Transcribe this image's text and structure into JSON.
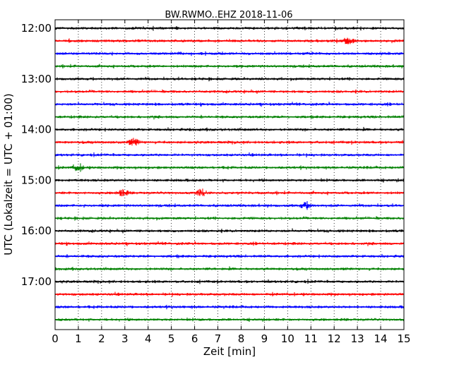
{
  "chart_data": {
    "type": "line",
    "title": "BW.RWMO..EHZ 2018-11-06",
    "xlabel": "Zeit  [min]",
    "ylabel": "UTC (Lokalzeit = UTC + 01:00)",
    "xlim": [
      0,
      15
    ],
    "x_ticks": [
      "0",
      "1",
      "2",
      "3",
      "4",
      "5",
      "6",
      "7",
      "8",
      "9",
      "10",
      "11",
      "12",
      "13",
      "14",
      "15"
    ],
    "y_ticks": [
      "12:00",
      "13:00",
      "14:00",
      "15:00",
      "16:00",
      "17:00"
    ],
    "grid": "vertical dotted at each minute",
    "trace_colors": [
      "#000000",
      "#ff0000",
      "#0000ff",
      "#008000"
    ],
    "traces": [
      {
        "start": "12:00"
      },
      {
        "start": "12:15"
      },
      {
        "start": "12:30"
      },
      {
        "start": "12:45"
      },
      {
        "start": "13:00"
      },
      {
        "start": "13:15"
      },
      {
        "start": "13:30"
      },
      {
        "start": "13:45"
      },
      {
        "start": "14:00"
      },
      {
        "start": "14:15"
      },
      {
        "start": "14:30"
      },
      {
        "start": "14:45"
      },
      {
        "start": "15:00"
      },
      {
        "start": "15:15"
      },
      {
        "start": "15:30"
      },
      {
        "start": "15:45"
      },
      {
        "start": "16:00"
      },
      {
        "start": "16:15"
      },
      {
        "start": "16:30"
      },
      {
        "start": "16:45"
      },
      {
        "start": "17:00"
      },
      {
        "start": "17:15"
      },
      {
        "start": "17:30"
      },
      {
        "start": "17:45"
      }
    ],
    "events": [
      {
        "trace": "12:15",
        "minute": 12.6
      },
      {
        "trace": "15:15",
        "minute": 2.9
      },
      {
        "trace": "15:15",
        "minute": 6.3
      },
      {
        "trace": "15:30",
        "minute": 10.8
      },
      {
        "trace": "14:15",
        "minute": 3.4
      },
      {
        "trace": "14:45",
        "minute": 1.0
      }
    ]
  }
}
